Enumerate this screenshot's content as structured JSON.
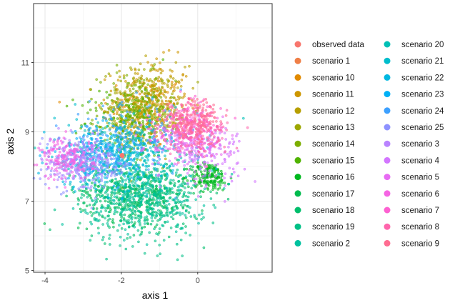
{
  "chart_data": {
    "type": "scatter",
    "title": "",
    "xlabel": "axis 1",
    "ylabel": "axis 2",
    "xlim": [
      -4.3,
      1.95
    ],
    "ylim": [
      4.95,
      12.7
    ],
    "x_ticks": [
      -4,
      -2,
      0
    ],
    "y_ticks": [
      5,
      7,
      9,
      11
    ],
    "x_tick_labels": [
      "-4",
      "-2",
      "0"
    ],
    "y_tick_labels": [
      "5",
      "7",
      "9",
      "11"
    ],
    "grid": true,
    "legend_position": "right",
    "series": [
      {
        "name": "observed data",
        "color": "#F8766D",
        "mode": "marker",
        "x": [
          -1.98
        ],
        "y": [
          8.32
        ]
      },
      {
        "name": "scenario 1",
        "color": "#EF7F47"
      },
      {
        "name": "scenario 10",
        "color": "#E18A00",
        "cx": -1.4,
        "cy": 9.6,
        "sx": 0.55,
        "sy": 0.55
      },
      {
        "name": "scenario 11",
        "color": "#CD9600",
        "cx": -1.2,
        "cy": 9.9,
        "sx": 0.5,
        "sy": 0.6
      },
      {
        "name": "scenario 12",
        "color": "#B79F00",
        "cx": -1.3,
        "cy": 9.8,
        "sx": 0.5,
        "sy": 0.55
      },
      {
        "name": "scenario 13",
        "color": "#9DA700",
        "cx": -1.5,
        "cy": 9.7,
        "sx": 0.5,
        "sy": 0.55
      },
      {
        "name": "scenario 14",
        "color": "#7CAE00",
        "cx": -1.6,
        "cy": 9.6,
        "sx": 0.5,
        "sy": 0.55
      },
      {
        "name": "scenario 15",
        "color": "#50B300",
        "cx": -1.9,
        "cy": 9.2,
        "sx": 0.6,
        "sy": 0.55
      },
      {
        "name": "scenario 16",
        "color": "#00B81F",
        "cx": 0.3,
        "cy": 7.7,
        "sx": 0.25,
        "sy": 0.2
      },
      {
        "name": "scenario 17",
        "color": "#00BB4E",
        "cx": -1.6,
        "cy": 7.3,
        "sx": 0.75,
        "sy": 0.45
      },
      {
        "name": "scenario 18",
        "color": "#00BE6C",
        "cx": -1.5,
        "cy": 7.1,
        "sx": 0.8,
        "sy": 0.5
      },
      {
        "name": "scenario 19",
        "color": "#00C086",
        "cx": -1.5,
        "cy": 6.9,
        "sx": 0.75,
        "sy": 0.6
      },
      {
        "name": "scenario 2",
        "color": "#00C19F",
        "cx": -1.4,
        "cy": 7.2,
        "sx": 0.8,
        "sy": 0.5
      },
      {
        "name": "scenario 20",
        "color": "#00C0B6",
        "cx": -1.7,
        "cy": 8.3,
        "sx": 0.8,
        "sy": 0.5
      },
      {
        "name": "scenario 21",
        "color": "#00BDCC",
        "cx": -1.8,
        "cy": 8.6,
        "sx": 0.9,
        "sy": 0.5
      },
      {
        "name": "scenario 22",
        "color": "#00B8E1",
        "cx": -2.4,
        "cy": 8.2,
        "sx": 0.8,
        "sy": 0.45
      },
      {
        "name": "scenario 23",
        "color": "#00B0F6",
        "cx": -2.6,
        "cy": 8.3,
        "sx": 0.7,
        "sy": 0.4
      },
      {
        "name": "scenario 24",
        "color": "#3DA0FF",
        "cx": -1.9,
        "cy": 8.8,
        "sx": 0.8,
        "sy": 0.5
      },
      {
        "name": "scenario 25",
        "color": "#8E92FF",
        "cx": -2.9,
        "cy": 8.0,
        "sx": 0.6,
        "sy": 0.35
      },
      {
        "name": "scenario 3",
        "color": "#B983FF",
        "cx": -3.2,
        "cy": 8.2,
        "sx": 0.5,
        "sy": 0.3
      },
      {
        "name": "scenario 4",
        "color": "#D376FF",
        "cx": 0.2,
        "cy": 8.4,
        "sx": 0.5,
        "sy": 0.4
      },
      {
        "name": "scenario 5",
        "color": "#E76BF3",
        "cx": -0.4,
        "cy": 8.8,
        "sx": 0.5,
        "sy": 0.4
      },
      {
        "name": "scenario 6",
        "color": "#F564E3",
        "cx": -3.4,
        "cy": 8.2,
        "sx": 0.35,
        "sy": 0.3
      },
      {
        "name": "scenario 7",
        "color": "#FD61D1",
        "cx": -0.2,
        "cy": 9.2,
        "sx": 0.4,
        "sy": 0.35
      },
      {
        "name": "scenario 8",
        "color": "#FF65AC",
        "cx": 0.0,
        "cy": 9.0,
        "sx": 0.4,
        "sy": 0.35
      },
      {
        "name": "scenario 9",
        "color": "#FF6C91",
        "cx": -0.1,
        "cy": 9.3,
        "sx": 0.35,
        "sy": 0.35
      }
    ]
  }
}
